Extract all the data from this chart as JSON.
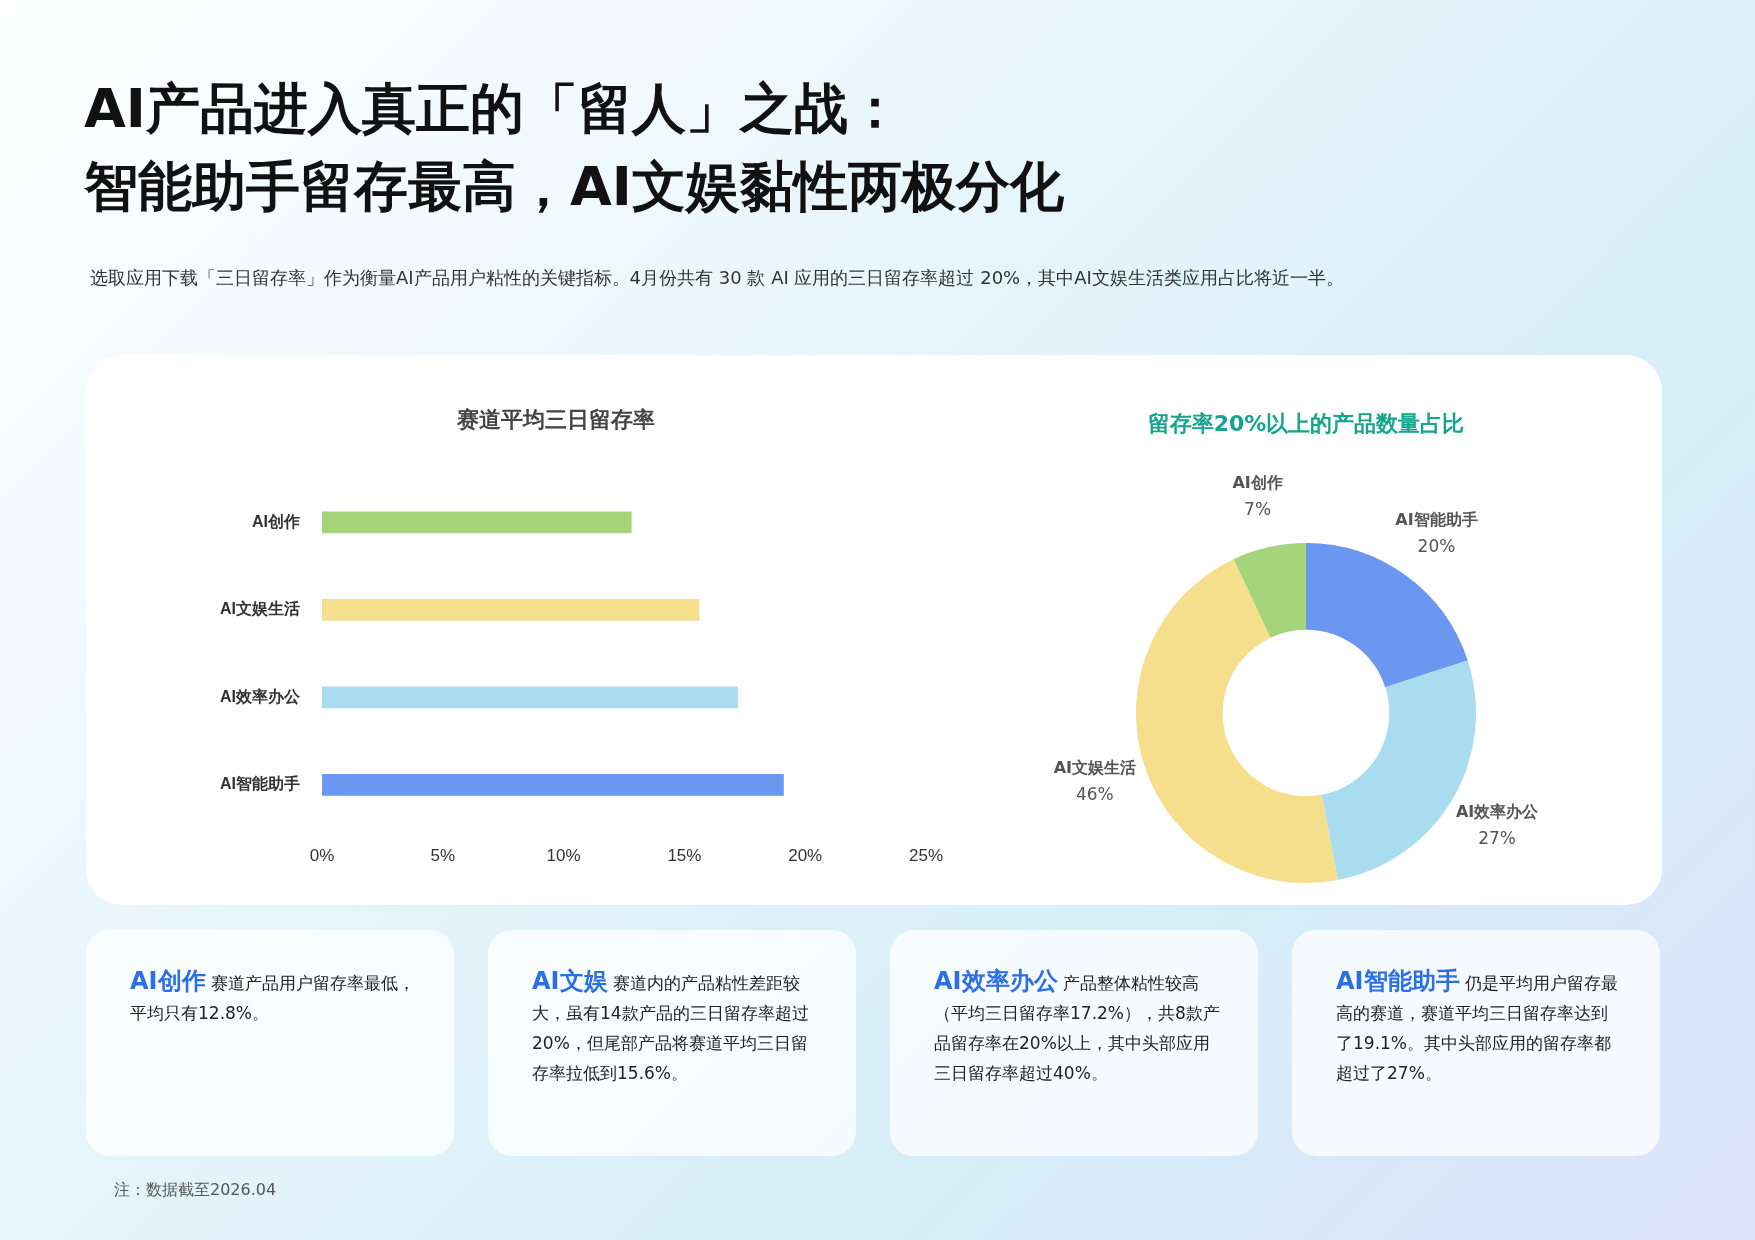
{
  "chart_data": [
    {
      "type": "other",
      "title": "AI产品进入真正的「留人」之战：智能助手留存最高，AI文娱黏性两极分化",
      "subtitle": "选取应用下载「三日留存率」作为衡量AI产品用户粘性的关键指标。4月份共有 30 款 AI 应用的三日留存率超过 20%，其中AI文娱生活类应用占比将近一半。"
    },
    {
      "type": "bar",
      "orientation": "horizontal",
      "title": "赛道平均三日留存率",
      "categories": [
        "AI创作",
        "AI文娱生活",
        "AI效率办公",
        "AI智能助手"
      ],
      "values": [
        12.8,
        15.6,
        17.2,
        19.1
      ],
      "colors": [
        "#a6d47a",
        "#f6df8c",
        "#a9dcef",
        "#6b97f0"
      ],
      "xlim": [
        0,
        25
      ],
      "xticks": [
        {
          "value": 0,
          "label": "0%"
        },
        {
          "value": 5,
          "label": "5%"
        },
        {
          "value": 10,
          "label": "10%"
        },
        {
          "value": 15,
          "label": "15%"
        },
        {
          "value": 20,
          "label": "20%"
        },
        {
          "value": 25,
          "label": "25%"
        }
      ],
      "grid": false,
      "legend": false
    },
    {
      "type": "donut",
      "title": "留存率20%以上的产品数量占比",
      "categories": [
        "AI智能助手",
        "AI效率办公",
        "AI文娱生活",
        "AI创作"
      ],
      "values": [
        20,
        27,
        46,
        7
      ],
      "value_labels": [
        "20%",
        "27%",
        "46%",
        "7%"
      ],
      "colors": [
        "#6b97f0",
        "#a9dcef",
        "#f6df8c",
        "#a6d47a"
      ],
      "legend": false
    },
    {
      "type": "other",
      "annotations": [
        "AI创作 赛道产品用户留存率最低，平均只有12.8%。",
        "AI文娱 赛道内的产品粘性差距较大，虽有14款产品的三日留存率超过20%，但尾部产品将赛道平均三日留存率拉低到15.6%。",
        "AI效率办公 产品整体粘性较高（平均三日留存率17.2%），共8款产品留存率在20%以上，其中头部应用三日留存率超过40%。",
        "AI智能助手 仍是平均用户留存最高的赛道，赛道平均三日留存率达到了19.1%。其中头部应用的留存率都超过了27%。",
        "注：数据截至2026.04"
      ]
    }
  ]
}
